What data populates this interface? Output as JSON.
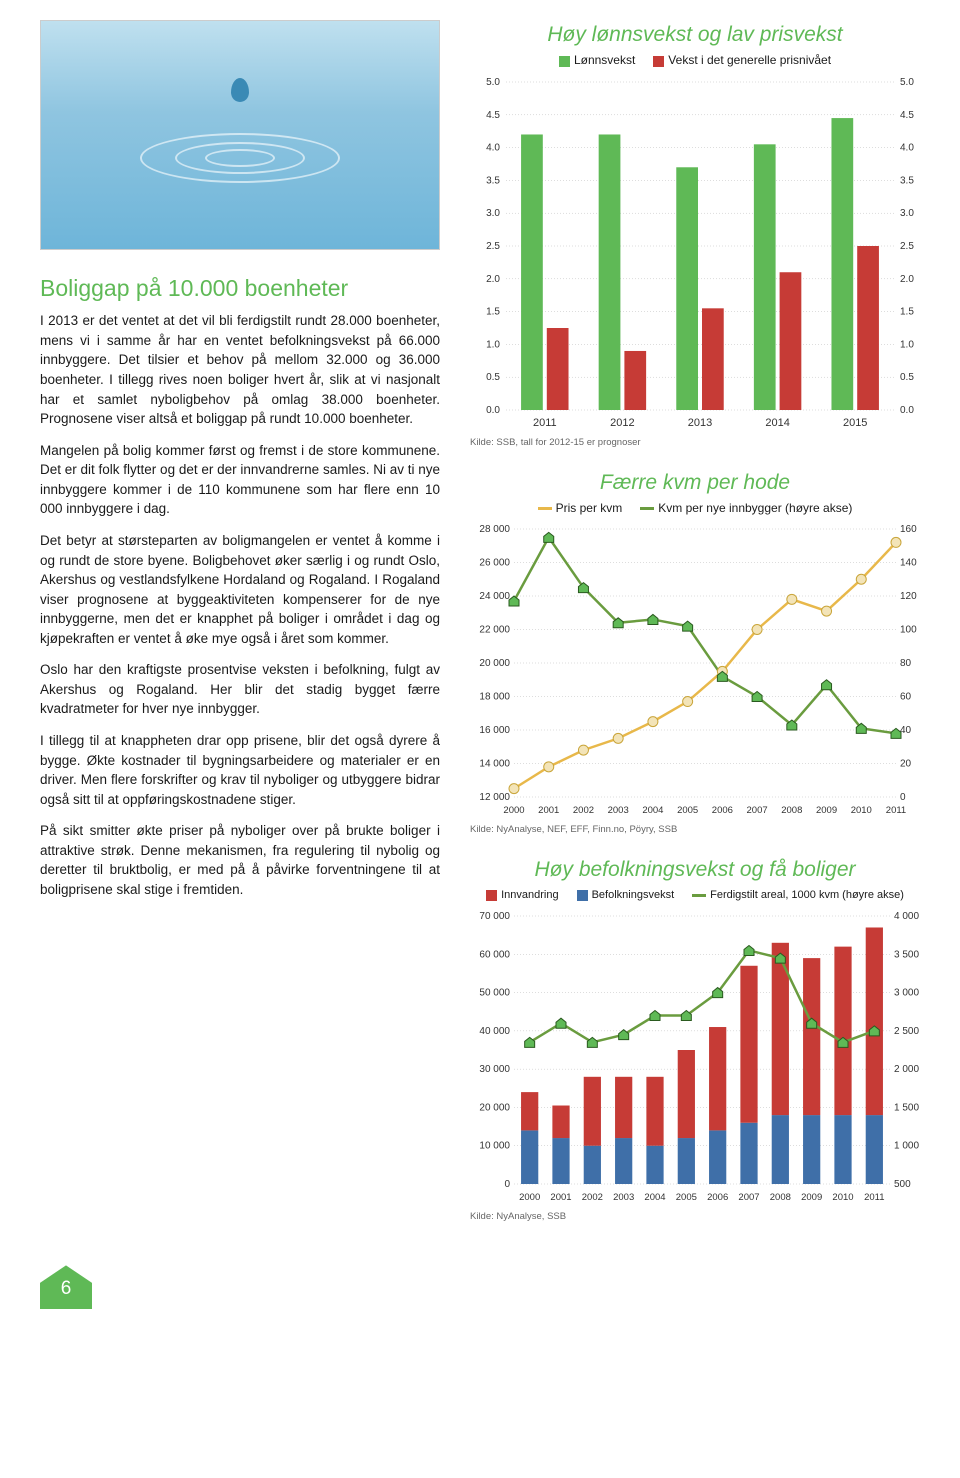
{
  "heroAlt": "Vanndråpe",
  "heading": "Boliggap på 10.000 boenheter",
  "paragraphs": [
    "I 2013 er det ventet at det vil bli ferdigstilt rundt 28.000 boenheter, mens vi i samme år har en ventet befolkningsvekst på 66.000 innbyggere. Det tilsier et behov på mellom 32.000 og 36.000 boenheter. I tillegg rives noen boliger hvert år, slik at vi nasjonalt har et samlet nyboligbehov på omlag 38.000 boenheter. Prognosene viser altså et boliggap på rundt 10.000 boenheter.",
    "Mangelen på bolig kommer først og fremst i de store kommunene. Det er dit folk flytter og det er der innvandrerne samles. Ni av ti nye innbyggere kommer i de 110 kommunene som har flere enn 10 000 innbyggere i dag.",
    "Det betyr at størsteparten av boligmangelen er ventet å komme i og rundt de store byene. Boligbehovet øker særlig i og rundt Oslo, Akershus og vestlandsfylkene Hordaland og Rogaland. I Rogaland viser prognosene at byggeaktiviteten kompenserer for de nye innbyggerne, men det er knapphet på boliger i området i dag og kjøpekraften er ventet å øke mye også i året som kommer.",
    "Oslo har den kraftigste prosentvise veksten i befolkning, fulgt av Akershus og Rogaland. Her blir det stadig bygget færre kvadratmeter for hver nye innbygger.",
    "I tillegg til at knappheten drar opp prisene, blir det også dyrere å bygge. Økte kostnader til bygningsarbeidere og materialer er en driver. Men flere forskrifter og krav til nyboliger og utbyggere bidrar også sitt til at oppføringskostnadene stiger.",
    "På sikt smitter økte priser på nyboliger over på brukte boliger i attraktive strøk. Denne mekanismen, fra regulering til nybolig og deretter til bruktbolig, er med på å påvirke forventningene til at boligprisene skal stige i fremtiden."
  ],
  "pageNumber": "6",
  "chart1": {
    "title": "Høy lønnsvekst og lav prisvekst",
    "series": [
      {
        "label": "Lønnsvekst",
        "color": "#5fb956"
      },
      {
        "label": "Vekst i det generelle prisnivået",
        "color": "#c63b36"
      }
    ],
    "years": [
      "2011",
      "2012",
      "2013",
      "2014",
      "2015"
    ],
    "green": [
      4.2,
      4.2,
      3.7,
      4.05,
      4.45
    ],
    "red": [
      1.25,
      0.9,
      1.55,
      2.1,
      2.5
    ],
    "ymin": 0.0,
    "ymax": 5.0,
    "ystep": 0.5,
    "source": "Kilde: SSB, tall for 2012-15 er prognoser"
  },
  "chart2": {
    "title": "Færre kvm per hode",
    "series": [
      {
        "label": "Pris per kvm",
        "color": "#e8b84a",
        "marker": "#e8d8a8"
      },
      {
        "label": "Kvm per nye innbygger (høyre akse)",
        "color": "#6a9c3f",
        "marker": "#5fb956"
      }
    ],
    "years": [
      "2000",
      "2001",
      "2002",
      "2003",
      "2004",
      "2005",
      "2006",
      "2007",
      "2008",
      "2009",
      "2010",
      "2011"
    ],
    "pris": [
      12500,
      13800,
      14800,
      15500,
      16500,
      17700,
      19500,
      22000,
      23800,
      23100,
      25000,
      27200
    ],
    "kvm": [
      117,
      155,
      125,
      104,
      106,
      102,
      72,
      60,
      43,
      67,
      41,
      38
    ],
    "y1min": 12000,
    "y1max": 28000,
    "y1step": 2000,
    "y2min": 0,
    "y2max": 160,
    "y2step": 20,
    "source": "Kilde: NyAnalyse, NEF, EFF, Finn.no, Pöyry, SSB"
  },
  "chart3": {
    "title": "Høy befolkningsvekst og få boliger",
    "series": [
      {
        "label": "Innvandring",
        "color": "#c63b36"
      },
      {
        "label": "Befolkningsvekst",
        "color": "#3f6fa8"
      },
      {
        "label": "Ferdigstilt areal, 1000 kvm (høyre akse)",
        "color": "#6a9c3f"
      }
    ],
    "years": [
      "2000",
      "2001",
      "2002",
      "2003",
      "2004",
      "2005",
      "2006",
      "2007",
      "2008",
      "2009",
      "2010",
      "2011"
    ],
    "innv": [
      10000,
      8500,
      18000,
      16000,
      18000,
      23000,
      27000,
      41000,
      45000,
      41000,
      44000,
      49000
    ],
    "bef": [
      14000,
      12000,
      10000,
      12000,
      10000,
      12000,
      14000,
      16000,
      18000,
      18000,
      18000,
      18000
    ],
    "areal": [
      2350,
      2600,
      2350,
      2450,
      2700,
      2700,
      3000,
      3550,
      3450,
      2600,
      2350,
      2500
    ],
    "y1min": 0,
    "y1max": 70000,
    "y1step": 10000,
    "y2min": 500,
    "y2max": 4000,
    "y2step": 500,
    "source": "Kilde: NyAnalyse, SSB"
  }
}
